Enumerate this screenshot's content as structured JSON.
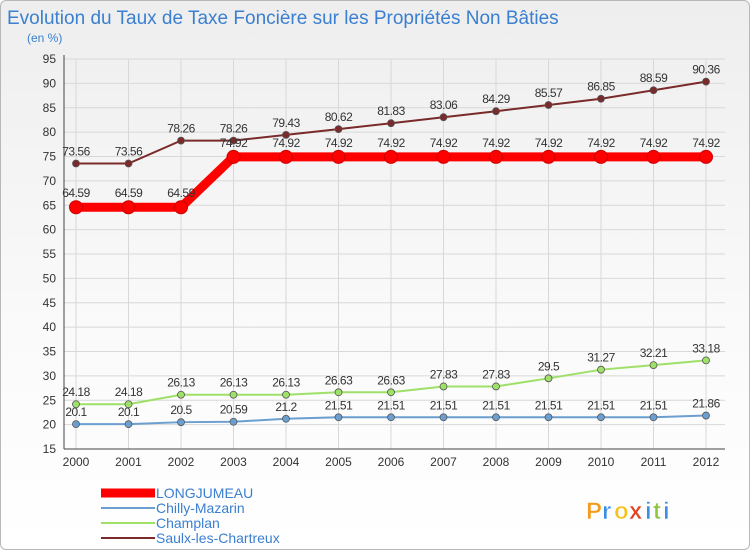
{
  "chart_data": {
    "type": "line",
    "title": "Evolution du Taux de Taxe Foncière sur les Propriétés Non Bâties",
    "subtitle": "(en %)",
    "categories": [
      "2000",
      "2001",
      "2002",
      "2003",
      "2004",
      "2005",
      "2006",
      "2007",
      "2008",
      "2009",
      "2010",
      "2011",
      "2012"
    ],
    "ylim": [
      15,
      95
    ],
    "yticks": [
      15,
      20,
      25,
      30,
      35,
      40,
      45,
      50,
      55,
      60,
      65,
      70,
      75,
      80,
      85,
      90,
      95
    ],
    "series": [
      {
        "name": "LONGJUMEAU",
        "color": "#ff0000",
        "values": [
          64.59,
          64.59,
          64.59,
          74.92,
          74.92,
          74.92,
          74.92,
          74.92,
          74.92,
          74.92,
          74.92,
          74.92,
          74.92
        ],
        "labels": [
          "64.59",
          "64.59",
          "64.59",
          "74.92",
          "74.92",
          "74.92",
          "74.92",
          "74.92",
          "74.92",
          "74.92",
          "74.92",
          "74.92",
          "74.92"
        ]
      },
      {
        "name": "Chilly-Mazarin",
        "color": "#6b9fd0",
        "values": [
          20.1,
          20.1,
          20.5,
          20.59,
          21.2,
          21.51,
          21.51,
          21.51,
          21.51,
          21.51,
          21.51,
          21.51,
          21.86
        ],
        "labels": [
          "20.1",
          "20.1",
          "20.5",
          "20.59",
          "21.2",
          "21.51",
          "21.51",
          "21.51",
          "21.51",
          "21.51",
          "21.51",
          "21.51",
          "21.86"
        ]
      },
      {
        "name": "Champlan",
        "color": "#9ee068",
        "values": [
          24.18,
          24.18,
          26.13,
          26.13,
          26.13,
          26.63,
          26.63,
          27.83,
          27.83,
          29.5,
          31.27,
          32.21,
          33.18
        ],
        "labels": [
          "24.18",
          "24.18",
          "26.13",
          "26.13",
          "26.13",
          "26.63",
          "26.63",
          "27.83",
          "27.83",
          "29.5",
          "31.27",
          "32.21",
          "33.18"
        ]
      },
      {
        "name": "Saulx-les-Chartreux",
        "color": "#7a2a2a",
        "values": [
          73.56,
          73.56,
          78.26,
          78.26,
          79.43,
          80.62,
          81.83,
          83.06,
          84.29,
          85.57,
          86.85,
          88.59,
          90.36
        ],
        "labels": [
          "73.56",
          "73.56",
          "78.26",
          "78.26",
          "79.43",
          "80.62",
          "81.83",
          "83.06",
          "84.29",
          "85.57",
          "86.85",
          "88.59",
          "90.36"
        ]
      }
    ],
    "legend_position": "bottom-left"
  },
  "brand": {
    "letters": [
      "P",
      "r",
      "o",
      "x",
      "i",
      "t",
      "i"
    ],
    "colors": [
      "#f39c1a",
      "#3a8ee6",
      "#f7c21f",
      "#e2401c",
      "#3a8ee6",
      "#8cc63f",
      "#3a8ee6"
    ]
  }
}
